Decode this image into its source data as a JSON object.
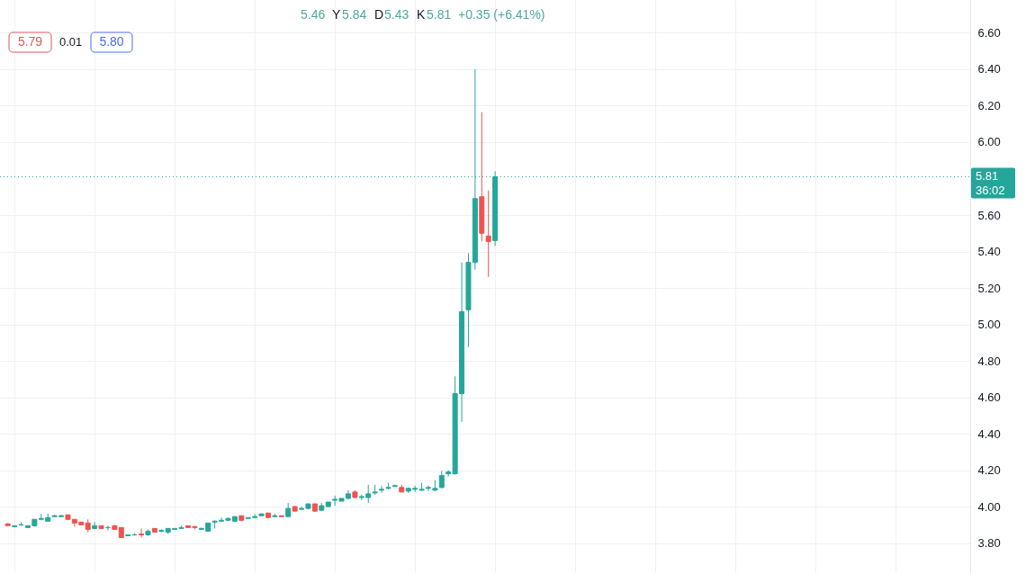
{
  "chart_data": {
    "type": "candlestick",
    "categories": [
      null,
      null,
      null,
      null,
      null,
      null,
      null,
      null,
      null,
      null,
      null,
      null,
      null,
      null,
      null,
      null,
      null,
      null,
      null,
      null,
      null,
      null,
      null,
      null,
      null,
      null,
      null,
      null,
      null,
      null,
      null,
      null,
      null,
      null,
      null,
      null,
      null,
      null,
      null,
      null,
      null,
      null,
      null,
      null,
      null,
      null,
      null,
      null,
      null,
      null,
      null,
      null,
      null,
      null,
      null,
      null,
      null,
      null,
      null,
      null,
      null,
      null,
      null,
      null,
      null,
      null,
      null,
      null,
      null,
      null,
      null,
      null,
      null,
      null,
      null,
      null,
      null,
      null,
      null,
      null,
      null,
      null,
      null,
      null,
      null,
      null,
      null,
      null,
      null,
      null,
      null,
      null,
      null,
      null,
      null,
      null,
      null,
      null,
      null,
      null,
      null,
      null,
      null,
      null,
      null,
      null,
      null,
      null,
      null,
      null,
      null,
      null,
      null,
      null,
      null,
      null,
      null,
      null,
      null,
      null,
      null,
      null,
      null,
      null,
      null,
      null,
      null,
      null,
      null,
      null,
      null,
      null,
      null,
      null,
      null,
      null,
      null,
      null,
      null,
      null,
      null,
      null,
      null,
      null
    ],
    "ohlc": [
      [
        3.905,
        3.91,
        3.895,
        3.895
      ],
      [
        3.89,
        3.895,
        3.885,
        3.895
      ],
      [
        3.9,
        3.915,
        3.895,
        3.9
      ],
      [
        3.885,
        3.895,
        3.885,
        3.895
      ],
      [
        3.895,
        3.93,
        3.89,
        3.93
      ],
      [
        3.93,
        3.96,
        3.925,
        3.935
      ],
      [
        3.92,
        3.96,
        3.92,
        3.94
      ],
      [
        3.945,
        3.955,
        3.945,
        3.95
      ],
      [
        3.945,
        3.955,
        3.945,
        3.95
      ],
      [
        3.955,
        3.955,
        3.925,
        3.93
      ],
      [
        3.93,
        3.93,
        3.89,
        3.91
      ],
      [
        3.915,
        3.915,
        3.9,
        3.9
      ],
      [
        3.91,
        3.93,
        3.86,
        3.875
      ],
      [
        3.88,
        3.915,
        3.875,
        3.895
      ],
      [
        3.895,
        3.895,
        3.88,
        3.88
      ],
      [
        3.885,
        3.895,
        3.87,
        3.885
      ],
      [
        3.895,
        3.9,
        3.875,
        3.875
      ],
      [
        3.885,
        3.885,
        3.83,
        3.83
      ],
      [
        3.84,
        3.845,
        3.84,
        3.845
      ],
      [
        3.845,
        3.855,
        3.84,
        3.845
      ],
      [
        3.85,
        3.88,
        3.83,
        3.845
      ],
      [
        3.845,
        3.875,
        3.84,
        3.865
      ],
      [
        3.88,
        3.88,
        3.86,
        3.86
      ],
      [
        3.865,
        3.875,
        3.86,
        3.87
      ],
      [
        3.86,
        3.88,
        3.85,
        3.88
      ],
      [
        3.875,
        3.88,
        3.875,
        3.88
      ],
      [
        3.88,
        3.895,
        3.88,
        3.885
      ],
      [
        3.895,
        3.895,
        3.885,
        3.885
      ],
      [
        3.89,
        3.895,
        3.875,
        3.885
      ],
      [
        3.875,
        3.885,
        3.875,
        3.88
      ],
      [
        3.865,
        3.91,
        3.865,
        3.91
      ],
      [
        3.915,
        3.925,
        3.88,
        3.92
      ],
      [
        3.92,
        3.94,
        3.915,
        3.925
      ],
      [
        3.925,
        3.94,
        3.92,
        3.935
      ],
      [
        3.92,
        3.945,
        3.915,
        3.945
      ],
      [
        3.95,
        3.95,
        3.92,
        3.925
      ],
      [
        3.935,
        3.94,
        3.935,
        3.94
      ],
      [
        3.94,
        3.96,
        3.935,
        3.945
      ],
      [
        3.95,
        3.96,
        3.95,
        3.96
      ],
      [
        3.965,
        3.965,
        3.935,
        3.94
      ],
      [
        3.945,
        3.96,
        3.94,
        3.95
      ],
      [
        3.95,
        3.95,
        3.945,
        3.945
      ],
      [
        3.945,
        4.02,
        3.945,
        3.99
      ],
      [
        4.0,
        4.005,
        3.975,
        3.975
      ],
      [
        3.985,
        4.0,
        3.98,
        3.99
      ],
      [
        3.99,
        4.015,
        3.985,
        4.015
      ],
      [
        4.015,
        4.015,
        3.97,
        3.975
      ],
      [
        3.98,
        4.02,
        3.975,
        4.005
      ],
      [
        4.0,
        4.025,
        4.0,
        4.025
      ],
      [
        4.035,
        4.06,
        4.005,
        4.04
      ],
      [
        4.03,
        4.045,
        4.03,
        4.045
      ],
      [
        4.045,
        4.09,
        4.04,
        4.07
      ],
      [
        4.08,
        4.09,
        4.045,
        4.05
      ],
      [
        4.05,
        4.065,
        4.035,
        4.055
      ],
      [
        4.05,
        4.12,
        4.02,
        4.07
      ],
      [
        4.075,
        4.12,
        4.065,
        4.08
      ],
      [
        4.09,
        4.115,
        4.075,
        4.095
      ],
      [
        4.1,
        4.13,
        4.095,
        4.105
      ],
      [
        4.11,
        4.12,
        4.11,
        4.115
      ],
      [
        4.105,
        4.12,
        4.08,
        4.08
      ],
      [
        4.085,
        4.105,
        4.075,
        4.1
      ],
      [
        4.095,
        4.115,
        4.08,
        4.1
      ],
      [
        4.09,
        4.13,
        4.085,
        4.095
      ],
      [
        4.1,
        4.115,
        4.085,
        4.105
      ],
      [
        4.09,
        4.145,
        4.085,
        4.1
      ],
      [
        4.105,
        4.195,
        4.1,
        4.17
      ],
      [
        4.18,
        4.2,
        4.165,
        4.19
      ],
      [
        4.18,
        4.715,
        4.175,
        4.62
      ],
      [
        4.62,
        5.34,
        4.465,
        5.07
      ],
      [
        5.08,
        5.39,
        4.875,
        5.34
      ],
      [
        5.34,
        6.4,
        5.3,
        5.69
      ],
      [
        5.7,
        6.165,
        5.455,
        5.5
      ],
      [
        5.485,
        5.735,
        5.26,
        5.455
      ],
      [
        5.46,
        5.84,
        5.43,
        5.81
      ],
      null,
      null,
      null,
      null,
      null,
      null,
      null,
      null,
      null,
      null,
      null,
      null,
      null,
      null,
      null,
      null,
      null,
      null,
      null,
      null,
      null,
      null,
      null,
      null,
      null,
      null,
      null,
      null,
      null,
      null,
      null,
      null,
      null,
      null,
      null,
      null,
      null,
      null,
      null,
      null,
      null,
      null,
      null,
      null,
      null,
      null,
      null,
      null,
      null,
      null,
      null,
      null,
      null,
      null,
      null,
      null,
      null,
      null,
      null,
      null,
      null,
      null,
      null,
      null,
      null,
      null,
      null,
      null,
      null,
      null
    ],
    "colors": [
      "#ef5350",
      "#26a69a",
      "#26a69a",
      "#26a69a",
      "#26a69a",
      "#26a69a",
      "#26a69a",
      "#26a69a",
      "#26a69a",
      "#ef5350",
      "#ef5350",
      "#ef5350",
      "#ef5350",
      "#26a69a",
      "#ef5350",
      "#26a69a",
      "#ef5350",
      "#ef5350",
      "#26a69a",
      "#26a69a",
      "#ef5350",
      "#26a69a",
      "#ef5350",
      "#26a69a",
      "#26a69a",
      "#26a69a",
      "#26a69a",
      "#ef5350",
      "#ef5350",
      "#26a69a",
      "#26a69a",
      "#26a69a",
      "#26a69a",
      "#26a69a",
      "#26a69a",
      "#ef5350",
      "#26a69a",
      "#26a69a",
      "#26a69a",
      "#ef5350",
      "#26a69a",
      "#ef5350",
      "#26a69a",
      "#ef5350",
      "#26a69a",
      "#26a69a",
      "#ef5350",
      "#26a69a",
      "#26a69a",
      "#26a69a",
      "#26a69a",
      "#26a69a",
      "#ef5350",
      "#26a69a",
      "#26a69a",
      "#26a69a",
      "#26a69a",
      "#26a69a",
      "#26a69a",
      "#ef5350",
      "#26a69a",
      "#26a69a",
      "#26a69a",
      "#26a69a",
      "#26a69a",
      "#26a69a",
      "#26a69a",
      "#26a69a",
      "#26a69a",
      "#26a69a",
      "#26a69a",
      "#ef5350",
      "#ef5350",
      "#26a69a",
      null,
      null,
      null,
      null,
      null,
      null,
      null,
      null,
      null,
      null,
      null,
      null,
      null,
      null,
      null,
      null,
      null,
      null,
      null,
      null,
      null,
      null,
      null,
      null,
      null,
      null,
      null,
      null,
      null,
      null,
      null,
      null,
      null,
      null,
      null,
      null,
      null,
      null,
      null,
      null,
      null,
      null,
      null,
      null,
      null,
      null,
      null,
      null,
      null,
      null,
      null,
      null,
      null,
      null,
      null,
      null,
      null,
      null,
      null,
      null,
      null,
      null,
      null,
      null,
      null,
      null,
      null,
      null,
      null,
      null
    ],
    "ylim": [
      3.64,
      6.78
    ],
    "yticks": [
      {
        "value": 3.8,
        "label": "3.80"
      },
      {
        "value": 4,
        "label": "4.00"
      },
      {
        "value": 4.2,
        "label": "4.20"
      },
      {
        "value": 4.4,
        "label": "4.40"
      },
      {
        "value": 4.6,
        "label": "4.60"
      },
      {
        "value": 4.8,
        "label": "4.80"
      },
      {
        "value": 5,
        "label": "5.00"
      },
      {
        "value": 5.2,
        "label": "5.20"
      },
      {
        "value": 5.4,
        "label": "5.40"
      },
      {
        "value": 5.6,
        "label": "5.60"
      },
      {
        "value": 6,
        "label": "6.00"
      },
      {
        "value": 6.2,
        "label": "6.20"
      },
      {
        "value": 6.4,
        "label": "6.40"
      },
      {
        "value": 6.6,
        "label": "6.60"
      }
    ],
    "tick_labels": "y",
    "grid": true,
    "ref_lines": [
      {
        "axis": "y",
        "value": 5.81,
        "label": "5.81",
        "color": "#26a69a",
        "line_style": "dotted"
      }
    ],
    "annotations": [
      "5.46",
      "Y",
      "5.84",
      "D",
      "5.43",
      "K",
      "5.81",
      "+0.35 (+6.41%)",
      "5.79",
      "0.01",
      "5.80",
      "36:02"
    ]
  }
}
